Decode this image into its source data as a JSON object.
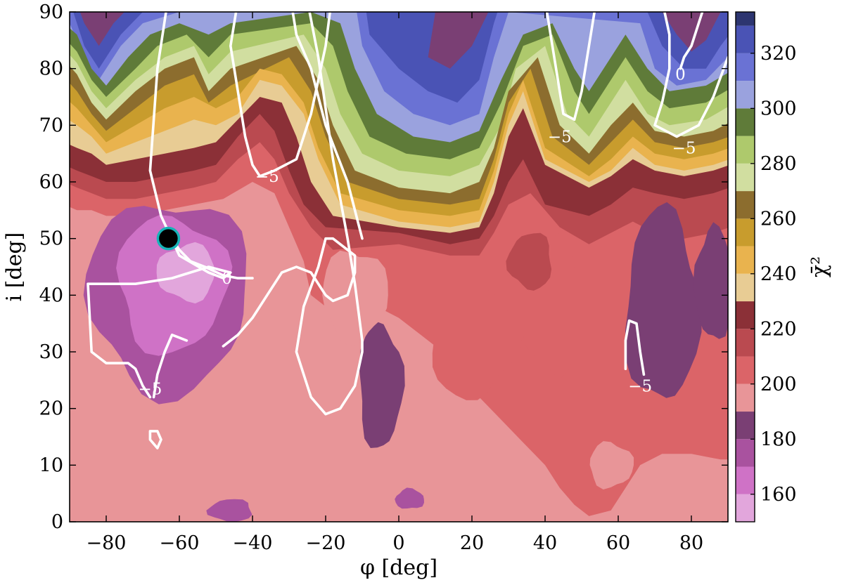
{
  "chart_data": {
    "type": "heatmap",
    "title": "",
    "xlabel": "φ [deg]",
    "ylabel": "i [deg]",
    "xlim": [
      -90,
      90
    ],
    "ylim": [
      0,
      90
    ],
    "x_ticks": [
      -80,
      -60,
      -40,
      -20,
      0,
      20,
      40,
      60,
      80
    ],
    "y_ticks": [
      0,
      10,
      20,
      30,
      40,
      50,
      60,
      70,
      80,
      90
    ],
    "colorbar": {
      "label": "χ̄²",
      "range": [
        150,
        335
      ],
      "ticks": [
        160,
        180,
        200,
        220,
        240,
        260,
        280,
        300,
        320
      ]
    },
    "colors": {
      "c150": "#e2a6dc",
      "c160": "#cf72c6",
      "c170": "#a9529f",
      "c180": "#7a3f74",
      "c190": "#e89598",
      "c200": "#db6468",
      "c210": "#ba4a50",
      "c220": "#8b3037",
      "c230": "#e8cc94",
      "c240": "#e9b34e",
      "c250": "#c89c2d",
      "c260": "#8c6d2e",
      "c270": "#d1dea0",
      "c280": "#aec96c",
      "c290": "#5f7b39",
      "c300": "#9aa2de",
      "c310": "#6a72d4",
      "c320": "#4a53b5",
      "c330": "#2d3570",
      "contour": "#ffffff",
      "marker_fill": "#000000",
      "marker_edge": "#17b3b8"
    },
    "best_fit_marker": {
      "x": -63,
      "y": 50
    },
    "contours": [
      {
        "label": "−5",
        "label_at": [
          -68,
          23.5
        ],
        "points": [
          [
            -62,
            97
          ],
          [
            -66,
            80
          ],
          [
            -68,
            62
          ],
          [
            -65,
            54
          ],
          [
            -60,
            47
          ],
          [
            -52,
            44
          ],
          [
            -48,
            43
          ],
          [
            -46,
            44
          ],
          [
            -52,
            45
          ],
          [
            -62,
            43
          ],
          [
            -72,
            42
          ],
          [
            -80,
            42
          ],
          [
            -85,
            42
          ],
          [
            -84,
            30
          ],
          [
            -80,
            28
          ],
          [
            -74,
            28
          ],
          [
            -72,
            27
          ],
          [
            -70,
            24
          ],
          [
            -68,
            22
          ]
        ]
      },
      {
        "label": "0",
        "label_at": [
          -47,
          43
        ],
        "points": [
          [
            -40,
            43
          ],
          [
            -44,
            43
          ],
          [
            -48,
            43.5
          ],
          [
            -53,
            45
          ],
          [
            -57,
            46
          ],
          [
            -60,
            48
          ],
          [
            -62,
            50
          ]
        ]
      },
      {
        "label": "−5",
        "label_at": [
          -36,
          61
        ],
        "points": [
          [
            -44,
            92
          ],
          [
            -46,
            84
          ],
          [
            -44,
            76
          ],
          [
            -42,
            68
          ],
          [
            -40,
            63
          ],
          [
            -38,
            61
          ],
          [
            -34,
            62
          ],
          [
            -28,
            64
          ],
          [
            -24,
            72
          ],
          [
            -20,
            84
          ],
          [
            -18,
            94
          ]
        ]
      },
      {
        "label": "",
        "label_at": null,
        "points": [
          [
            -58,
            32
          ],
          [
            -62,
            33
          ],
          [
            -64,
            30
          ],
          [
            -66,
            26
          ],
          [
            -67,
            22
          ]
        ]
      },
      {
        "label": "",
        "label_at": null,
        "points": [
          [
            -48,
            31
          ],
          [
            -44,
            33
          ],
          [
            -40,
            36
          ],
          [
            -36,
            40
          ],
          [
            -32,
            44
          ],
          [
            -28,
            45
          ],
          [
            -24,
            44
          ],
          [
            -20,
            40
          ],
          [
            -18,
            39
          ],
          [
            -14,
            40
          ],
          [
            -12,
            44
          ],
          [
            -12,
            47
          ],
          [
            -14,
            48
          ],
          [
            -18,
            50
          ],
          [
            -20,
            50
          ],
          [
            -22,
            45
          ],
          [
            -26,
            38
          ],
          [
            -28,
            30
          ],
          [
            -24,
            22
          ],
          [
            -20,
            19
          ],
          [
            -16,
            20
          ],
          [
            -12,
            24
          ],
          [
            -10,
            30
          ],
          [
            -10,
            32
          ],
          [
            -12,
            42
          ],
          [
            -14,
            50
          ],
          [
            -18,
            64
          ],
          [
            -22,
            82
          ],
          [
            -25,
            92
          ]
        ]
      },
      {
        "label": "",
        "label_at": null,
        "points": [
          [
            -30,
            94
          ],
          [
            -28,
            86
          ],
          [
            -24,
            80
          ],
          [
            -20,
            70
          ],
          [
            -14,
            60
          ],
          [
            -10,
            50
          ]
        ]
      },
      {
        "label": "−5",
        "label_at": [
          44,
          68
        ],
        "points": [
          [
            40,
            92
          ],
          [
            42,
            84
          ],
          [
            44,
            76
          ],
          [
            45,
            72
          ],
          [
            48,
            71
          ]
        ]
      },
      {
        "label": "",
        "label_at": null,
        "points": [
          [
            54,
            92
          ],
          [
            52,
            84
          ],
          [
            50,
            76
          ],
          [
            48,
            71
          ]
        ]
      },
      {
        "label": "0",
        "label_at": [
          77,
          79
        ],
        "points": [
          [
            84,
            92
          ],
          [
            82,
            88
          ],
          [
            80,
            84
          ],
          [
            78,
            82
          ],
          [
            77,
            80
          ]
        ]
      },
      {
        "label": "−5",
        "label_at": [
          78,
          66
        ],
        "points": [
          [
            72,
            92
          ],
          [
            74,
            86
          ],
          [
            74,
            80
          ],
          [
            72,
            74
          ],
          [
            70,
            70
          ],
          [
            76,
            68
          ],
          [
            82,
            70
          ],
          [
            86,
            75
          ],
          [
            90,
            82
          ]
        ]
      },
      {
        "label": "−5",
        "label_at": [
          66,
          24
        ],
        "points": [
          [
            67,
            26
          ],
          [
            66,
            30
          ],
          [
            65,
            35
          ],
          [
            63,
            35.5
          ],
          [
            62,
            32
          ],
          [
            62,
            27
          ]
        ]
      },
      {
        "label": "",
        "label_at": null,
        "points": [
          [
            -68,
            16
          ],
          [
            -66,
            16
          ],
          [
            -65,
            14.5
          ],
          [
            -66,
            13
          ],
          [
            -68,
            14.5
          ],
          [
            -68,
            16
          ]
        ]
      }
    ]
  }
}
